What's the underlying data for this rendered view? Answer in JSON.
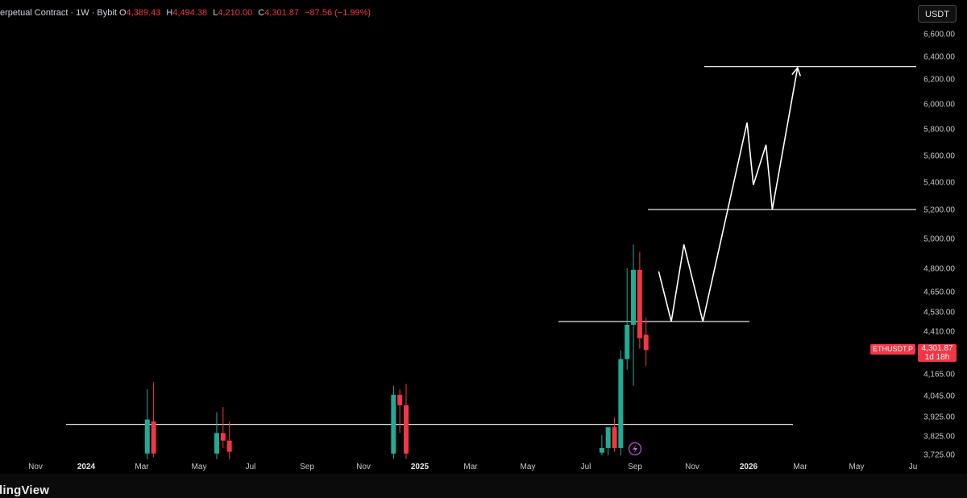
{
  "legend": {
    "title": "erpetual Contract · 1W · Bybit",
    "o_label": "O",
    "o": "4,389.43",
    "h_label": "H",
    "h": "4,494.38",
    "l_label": "L",
    "l": "4,210.00",
    "c_label": "C",
    "c": "4,301.87",
    "change": "−87.56 (−1.99%)"
  },
  "unit_button": "USDT",
  "price_badge": {
    "symbol": "ETHUSDT.P",
    "price": "4,301.87",
    "countdown": "1d 18h"
  },
  "logo_text": "dingView",
  "icons": {
    "event_marker": "lightning-icon"
  },
  "colors": {
    "up": "#22ab94",
    "down": "#f23645",
    "drawing": "#ffffff",
    "background": "#000000"
  },
  "chart_data": {
    "type": "candlestick",
    "ylabels": [
      "6,600.00",
      "6,400.00",
      "6,200.00",
      "6,000.00",
      "5,800.00",
      "5,600.00",
      "5,400.00",
      "5,200.00",
      "5,000.00",
      "4,800.00",
      "4,650.00",
      "4,530.00",
      "4,410.00",
      "4,165.00",
      "4,045.00",
      "3,925.00",
      "3,825.00",
      "3,725.00"
    ],
    "xlabels": [
      {
        "text": "Nov",
        "bold": false
      },
      {
        "text": "2024",
        "bold": true
      },
      {
        "text": "Mar",
        "bold": false
      },
      {
        "text": "May",
        "bold": false
      },
      {
        "text": "Jul",
        "bold": false
      },
      {
        "text": "Sep",
        "bold": false
      },
      {
        "text": "Nov",
        "bold": false
      },
      {
        "text": "2025",
        "bold": true
      },
      {
        "text": "Mar",
        "bold": false
      },
      {
        "text": "May",
        "bold": false
      },
      {
        "text": "Jul",
        "bold": false
      },
      {
        "text": "Sep",
        "bold": false
      },
      {
        "text": "Nov",
        "bold": false
      },
      {
        "text": "2026",
        "bold": true
      },
      {
        "text": "Mar",
        "bold": false
      },
      {
        "text": "May",
        "bold": false
      },
      {
        "text": "Ju",
        "bold": false
      }
    ],
    "candles": [
      {
        "date": "2024-03-04",
        "o": 3730,
        "h": 4080,
        "l": 3700,
        "c": 3910
      },
      {
        "date": "2024-03-11",
        "o": 3900,
        "h": 4120,
        "l": 3710,
        "c": 3730
      },
      {
        "date": "2024-05-20",
        "o": 3730,
        "h": 3950,
        "l": 3700,
        "c": 3840
      },
      {
        "date": "2024-05-27",
        "o": 3840,
        "h": 3980,
        "l": 3760,
        "c": 3800
      },
      {
        "date": "2024-06-03",
        "o": 3800,
        "h": 3900,
        "l": 3700,
        "c": 3740
      },
      {
        "date": "2024-12-02",
        "o": 3730,
        "h": 4100,
        "l": 3700,
        "c": 4050
      },
      {
        "date": "2024-12-09",
        "o": 4050,
        "h": 4080,
        "l": 3840,
        "c": 3990
      },
      {
        "date": "2024-12-16",
        "o": 3990,
        "h": 4110,
        "l": 3700,
        "c": 3730
      },
      {
        "date": "2025-07-21",
        "o": 3735,
        "h": 3830,
        "l": 3720,
        "c": 3760
      },
      {
        "date": "2025-07-28",
        "o": 3760,
        "h": 3860,
        "l": 3720,
        "c": 3870
      },
      {
        "date": "2025-08-04",
        "o": 3870,
        "h": 3920,
        "l": 3740,
        "c": 3760
      },
      {
        "date": "2025-08-11",
        "o": 3760,
        "h": 4300,
        "l": 3720,
        "c": 4250
      },
      {
        "date": "2025-08-18",
        "o": 4250,
        "h": 4800,
        "l": 4190,
        "c": 4450
      },
      {
        "date": "2025-08-25",
        "o": 4450,
        "h": 4960,
        "l": 4100,
        "c": 4790
      },
      {
        "date": "2025-09-01",
        "o": 4790,
        "h": 4910,
        "l": 4310,
        "c": 4370
      },
      {
        "date": "2025-09-08",
        "o": 4389.43,
        "h": 4494.38,
        "l": 4210,
        "c": 4301.87
      }
    ],
    "drawings": {
      "support": 3885,
      "breakout_level": 4470,
      "mid_level": 5200,
      "target": 6310,
      "projection_path": [
        {
          "date": "2025-09-22",
          "p": 4780
        },
        {
          "date": "2025-10-06",
          "p": 4470
        },
        {
          "date": "2025-10-20",
          "p": 4960
        },
        {
          "date": "2025-11-10",
          "p": 4470
        },
        {
          "date": "2025-12-29",
          "p": 5850
        },
        {
          "date": "2026-01-05",
          "p": 5380
        },
        {
          "date": "2026-01-19",
          "p": 5680
        },
        {
          "date": "2026-01-26",
          "p": 5200
        },
        {
          "date": "2026-02-23",
          "p": 6300
        }
      ]
    }
  }
}
